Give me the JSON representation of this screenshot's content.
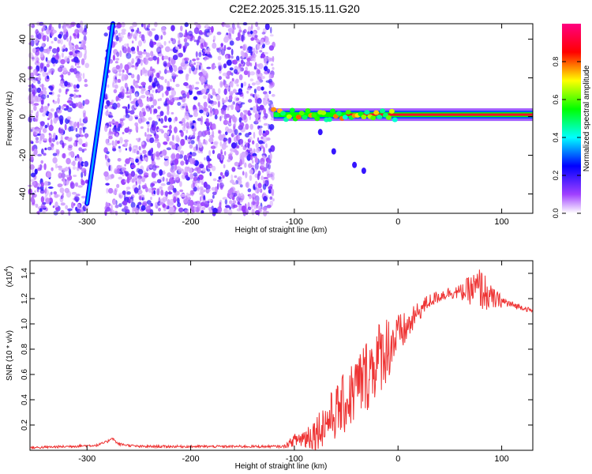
{
  "figure": {
    "title": "C2E2.2025.315.15.11.G20"
  },
  "chart_data": [
    {
      "type": "heatmap",
      "title": "C2E2.2025.315.15.11.G20",
      "xlabel": "Height of straight line (km)",
      "ylabel": "Frequency (Hz)",
      "xlim": [
        -355,
        130
      ],
      "ylim": [
        -50,
        48
      ],
      "xticks": [
        -300,
        -200,
        -100,
        0,
        100
      ],
      "yticks": [
        -40,
        -20,
        0,
        20,
        40
      ],
      "colorbar": {
        "label": "Normalized spectral amplitude",
        "range": [
          0.0,
          1.0
        ],
        "ticks": [
          "0.0",
          "0.2",
          "0.4",
          "0.6",
          "0.8"
        ],
        "tick_values": [
          0.0,
          0.2,
          0.4,
          0.6,
          0.8
        ],
        "colors": [
          "#ffffff",
          "#a040ff",
          "#0000ff",
          "#00ffff",
          "#00ff00",
          "#ffff00",
          "#ff0000",
          "#ff0080"
        ]
      },
      "features": {
        "noise_region_x": [
          -355,
          -120
        ],
        "gap_region_x": [
          -300,
          -282
        ],
        "diagonal_streak": {
          "x": [
            -300,
            -275
          ],
          "y": [
            -45,
            48
          ],
          "amplitude": 0.35
        },
        "signal_band_x": [
          -120,
          130
        ],
        "signal_band_y": 1.0,
        "signal_amplitude_peak": 0.9,
        "decay_tail": [
          [
            -75,
            -8
          ],
          [
            -62,
            -18
          ],
          [
            -42,
            -25
          ],
          [
            -33,
            -28
          ]
        ]
      }
    },
    {
      "type": "line",
      "xlabel": "Height of straight line (km)",
      "ylabel": "SNR (10 * v/v)",
      "yscale_label": "(x10",
      "yscale_exp": "4",
      "yscale_suffix": ")",
      "xlim": [
        -355,
        130
      ],
      "ylim": [
        0,
        1.5
      ],
      "xticks": [
        -300,
        -200,
        -100,
        0,
        100
      ],
      "yticks": [
        0.2,
        0.4,
        0.6,
        0.8,
        1.0,
        1.2,
        1.4
      ],
      "series": [
        {
          "name": "SNR",
          "color": "#ee3333",
          "x": [
            -355,
            -320,
            -290,
            -280,
            -276,
            -270,
            -250,
            -200,
            -150,
            -110,
            -100,
            -90,
            -80,
            -70,
            -60,
            -50,
            -40,
            -30,
            -20,
            -10,
            0,
            10,
            20,
            30,
            40,
            50,
            60,
            70,
            80,
            90,
            100,
            110,
            120,
            130
          ],
          "y": [
            0.02,
            0.03,
            0.04,
            0.07,
            0.1,
            0.05,
            0.03,
            0.03,
            0.03,
            0.03,
            0.08,
            0.1,
            0.14,
            0.22,
            0.3,
            0.38,
            0.5,
            0.6,
            0.72,
            0.82,
            0.9,
            0.98,
            1.1,
            1.18,
            1.22,
            1.25,
            1.25,
            1.27,
            1.28,
            1.2,
            1.18,
            1.15,
            1.13,
            1.1
          ],
          "noise_amp": [
            0.01,
            0.01,
            0.01,
            0.01,
            0.01,
            0.01,
            0.01,
            0.01,
            0.01,
            0.01,
            0.05,
            0.1,
            0.14,
            0.18,
            0.22,
            0.25,
            0.28,
            0.3,
            0.3,
            0.28,
            0.18,
            0.12,
            0.08,
            0.06,
            0.05,
            0.05,
            0.06,
            0.12,
            0.18,
            0.1,
            0.05,
            0.03,
            0.02,
            0.02
          ]
        }
      ]
    }
  ]
}
